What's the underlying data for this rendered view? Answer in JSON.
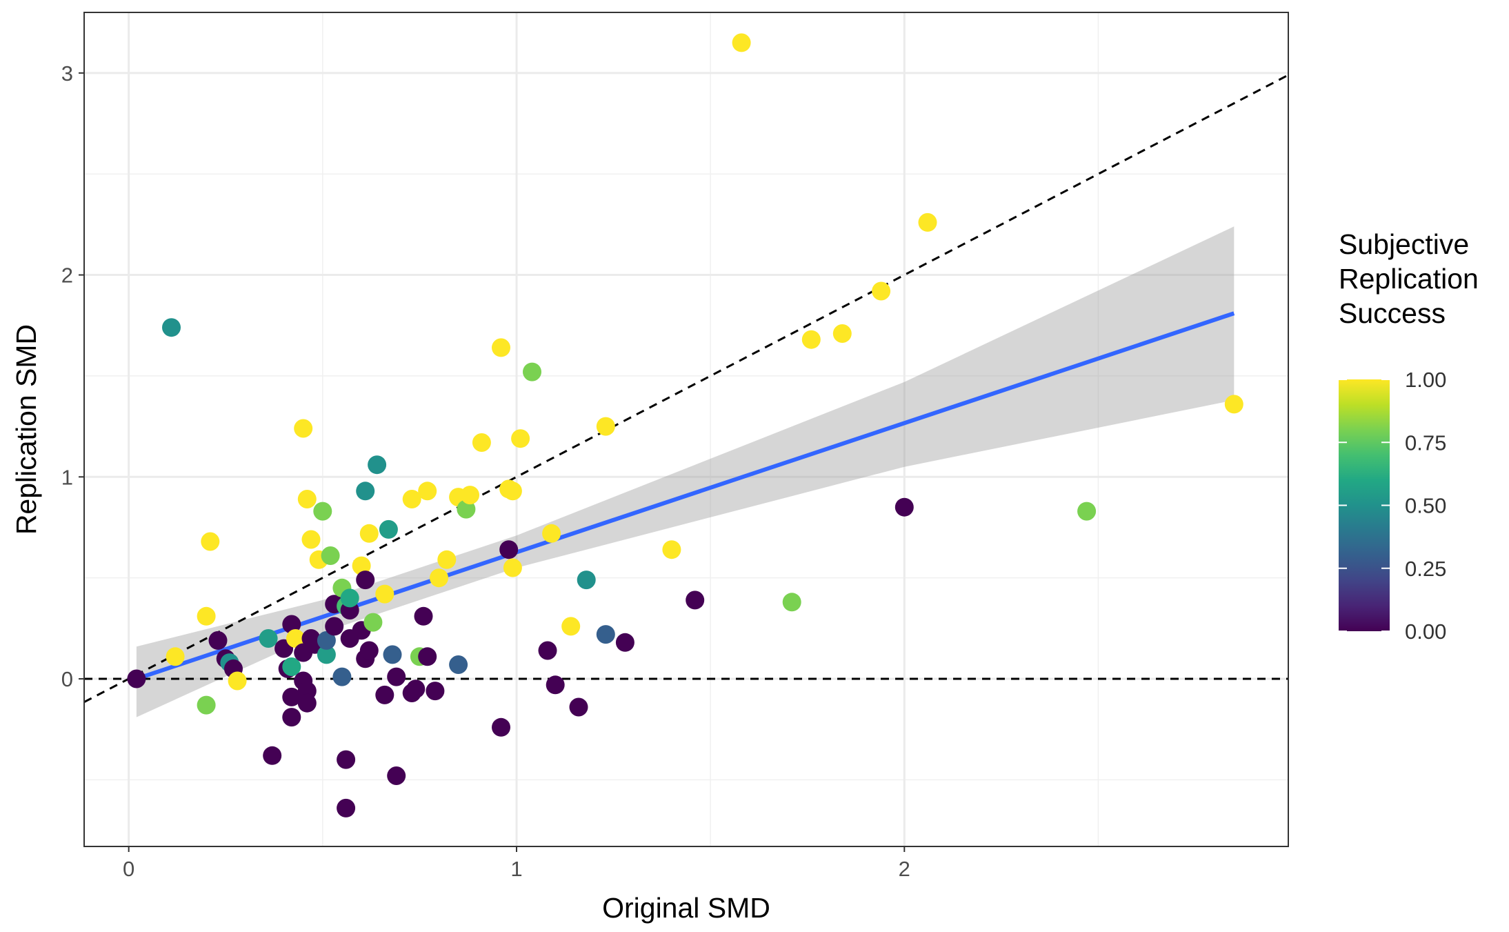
{
  "chart_data": {
    "type": "scatter",
    "xlabel": "Original SMD",
    "ylabel": "Replication SMD",
    "xlim": [
      -0.115,
      2.99
    ],
    "ylim": [
      -0.83,
      3.3
    ],
    "x_ticks": [
      0,
      1,
      2
    ],
    "y_ticks": [
      0,
      1,
      2,
      3
    ],
    "x_tick_labels": [
      "0",
      "1",
      "2"
    ],
    "y_tick_labels": [
      "0",
      "1",
      "2",
      "3"
    ],
    "grid": true,
    "legend": {
      "position": "right",
      "title_lines": [
        "Subjective",
        "Replication",
        "Success"
      ],
      "min": 0,
      "max": 1,
      "ticks": [
        0,
        0.25,
        0.5,
        0.75,
        1
      ],
      "tick_labels": [
        "0.00",
        "0.25",
        "0.50",
        "0.75",
        "1.00"
      ],
      "palette": "viridis",
      "colors": [
        "#440154",
        "#3b528b",
        "#21908c",
        "#5dc863",
        "#fde725"
      ]
    },
    "reference_lines": [
      {
        "name": "identity",
        "slope": 1,
        "intercept": 0,
        "style": "dashed",
        "color": "#000000"
      },
      {
        "name": "zero",
        "slope": 0,
        "intercept": 0,
        "style": "dashed",
        "color": "#000000"
      }
    ],
    "fit": {
      "method": "linear regression",
      "color": "#3366ff",
      "band_color": "#999999",
      "x": [
        0.02,
        2.85
      ],
      "y": [
        0.0,
        1.81
      ],
      "band": [
        {
          "x": 0.02,
          "lo": -0.19,
          "hi": 0.16
        },
        {
          "x": 0.5,
          "lo": 0.23,
          "hi": 0.39
        },
        {
          "x": 1.0,
          "lo": 0.55,
          "hi": 0.71
        },
        {
          "x": 2.0,
          "lo": 1.05,
          "hi": 1.47
        },
        {
          "x": 2.85,
          "lo": 1.38,
          "hi": 2.24
        }
      ]
    },
    "points": [
      {
        "x": 0.02,
        "y": 0.0,
        "success": 0.0
      },
      {
        "x": 0.11,
        "y": 1.74,
        "success": 0.5
      },
      {
        "x": 0.12,
        "y": 0.11,
        "success": 1.0
      },
      {
        "x": 0.2,
        "y": 0.31,
        "success": 1.0
      },
      {
        "x": 0.2,
        "y": -0.13,
        "success": 0.8
      },
      {
        "x": 0.21,
        "y": 0.68,
        "success": 1.0
      },
      {
        "x": 0.23,
        "y": 0.19,
        "success": 0.0
      },
      {
        "x": 0.25,
        "y": 0.1,
        "success": 0.0
      },
      {
        "x": 0.26,
        "y": 0.08,
        "success": 0.5
      },
      {
        "x": 0.27,
        "y": 0.05,
        "success": 0.0
      },
      {
        "x": 0.28,
        "y": -0.01,
        "success": 1.0
      },
      {
        "x": 0.36,
        "y": 0.2,
        "success": 0.55
      },
      {
        "x": 0.37,
        "y": -0.38,
        "success": 0.0
      },
      {
        "x": 0.4,
        "y": 0.15,
        "success": 0.0
      },
      {
        "x": 0.41,
        "y": 0.05,
        "success": 0.0
      },
      {
        "x": 0.42,
        "y": -0.09,
        "success": 0.0
      },
      {
        "x": 0.42,
        "y": -0.19,
        "success": 0.0
      },
      {
        "x": 0.42,
        "y": 0.27,
        "success": 0.0
      },
      {
        "x": 0.42,
        "y": 0.06,
        "success": 0.6
      },
      {
        "x": 0.43,
        "y": 0.2,
        "success": 1.0
      },
      {
        "x": 0.45,
        "y": 1.24,
        "success": 1.0
      },
      {
        "x": 0.45,
        "y": 0.13,
        "success": 0.0
      },
      {
        "x": 0.45,
        "y": -0.01,
        "success": 0.0
      },
      {
        "x": 0.46,
        "y": -0.06,
        "success": 0.0
      },
      {
        "x": 0.46,
        "y": -0.12,
        "success": 0.0
      },
      {
        "x": 0.46,
        "y": 0.89,
        "success": 1.0
      },
      {
        "x": 0.47,
        "y": 0.69,
        "success": 1.0
      },
      {
        "x": 0.47,
        "y": 0.2,
        "success": 0.0
      },
      {
        "x": 0.48,
        "y": 0.17,
        "success": 0.0
      },
      {
        "x": 0.49,
        "y": 0.59,
        "success": 1.0
      },
      {
        "x": 0.5,
        "y": 0.83,
        "success": 0.8
      },
      {
        "x": 0.51,
        "y": 0.12,
        "success": 0.55
      },
      {
        "x": 0.51,
        "y": 0.19,
        "success": 0.3
      },
      {
        "x": 0.52,
        "y": 0.61,
        "success": 0.8
      },
      {
        "x": 0.53,
        "y": 0.26,
        "success": 0.0
      },
      {
        "x": 0.53,
        "y": 0.37,
        "success": 0.0
      },
      {
        "x": 0.55,
        "y": 0.45,
        "success": 0.8
      },
      {
        "x": 0.55,
        "y": 0.01,
        "success": 0.3
      },
      {
        "x": 0.56,
        "y": 0.36,
        "success": 0.7
      },
      {
        "x": 0.56,
        "y": -0.64,
        "success": 0.0
      },
      {
        "x": 0.56,
        "y": -0.4,
        "success": 0.0
      },
      {
        "x": 0.57,
        "y": 0.2,
        "success": 0.0
      },
      {
        "x": 0.57,
        "y": 0.34,
        "success": 0.0
      },
      {
        "x": 0.57,
        "y": 0.4,
        "success": 0.6
      },
      {
        "x": 0.6,
        "y": 0.56,
        "success": 1.0
      },
      {
        "x": 0.6,
        "y": 0.24,
        "success": 0.0
      },
      {
        "x": 0.61,
        "y": 0.1,
        "success": 0.0
      },
      {
        "x": 0.61,
        "y": 0.49,
        "success": 0.0
      },
      {
        "x": 0.61,
        "y": 0.93,
        "success": 0.5
      },
      {
        "x": 0.62,
        "y": 0.14,
        "success": 0.0
      },
      {
        "x": 0.62,
        "y": 0.72,
        "success": 1.0
      },
      {
        "x": 0.63,
        "y": 0.28,
        "success": 0.8
      },
      {
        "x": 0.64,
        "y": 1.06,
        "success": 0.5
      },
      {
        "x": 0.66,
        "y": -0.08,
        "success": 0.0
      },
      {
        "x": 0.66,
        "y": 0.42,
        "success": 1.0
      },
      {
        "x": 0.67,
        "y": 0.74,
        "success": 0.55
      },
      {
        "x": 0.68,
        "y": 0.12,
        "success": 0.3
      },
      {
        "x": 0.69,
        "y": -0.48,
        "success": 0.0
      },
      {
        "x": 0.69,
        "y": 0.01,
        "success": 0.0
      },
      {
        "x": 0.73,
        "y": 0.89,
        "success": 1.0
      },
      {
        "x": 0.73,
        "y": -0.07,
        "success": 0.0
      },
      {
        "x": 0.74,
        "y": -0.05,
        "success": 0.0
      },
      {
        "x": 0.75,
        "y": 0.11,
        "success": 0.8
      },
      {
        "x": 0.76,
        "y": 0.31,
        "success": 0.0
      },
      {
        "x": 0.77,
        "y": 0.93,
        "success": 1.0
      },
      {
        "x": 0.77,
        "y": 0.11,
        "success": 0.0
      },
      {
        "x": 0.79,
        "y": -0.06,
        "success": 0.0
      },
      {
        "x": 0.8,
        "y": 0.5,
        "success": 1.0
      },
      {
        "x": 0.82,
        "y": 0.59,
        "success": 1.0
      },
      {
        "x": 0.85,
        "y": 0.9,
        "success": 1.0
      },
      {
        "x": 0.85,
        "y": 0.07,
        "success": 0.3
      },
      {
        "x": 0.87,
        "y": 0.84,
        "success": 0.8
      },
      {
        "x": 0.88,
        "y": 0.91,
        "success": 1.0
      },
      {
        "x": 0.91,
        "y": 1.17,
        "success": 1.0
      },
      {
        "x": 0.96,
        "y": 1.64,
        "success": 1.0
      },
      {
        "x": 0.96,
        "y": -0.24,
        "success": 0.0
      },
      {
        "x": 0.98,
        "y": 0.64,
        "success": 0.0
      },
      {
        "x": 0.98,
        "y": 0.94,
        "success": 1.0
      },
      {
        "x": 0.99,
        "y": 0.93,
        "success": 1.0
      },
      {
        "x": 0.99,
        "y": 0.55,
        "success": 1.0
      },
      {
        "x": 1.01,
        "y": 1.19,
        "success": 1.0
      },
      {
        "x": 1.04,
        "y": 1.52,
        "success": 0.8
      },
      {
        "x": 1.08,
        "y": 0.14,
        "success": 0.0
      },
      {
        "x": 1.09,
        "y": 0.72,
        "success": 1.0
      },
      {
        "x": 1.1,
        "y": -0.03,
        "success": 0.0
      },
      {
        "x": 1.14,
        "y": 0.26,
        "success": 1.0
      },
      {
        "x": 1.16,
        "y": -0.14,
        "success": 0.0
      },
      {
        "x": 1.18,
        "y": 0.49,
        "success": 0.5
      },
      {
        "x": 1.23,
        "y": 1.25,
        "success": 1.0
      },
      {
        "x": 1.23,
        "y": 0.22,
        "success": 0.3
      },
      {
        "x": 1.28,
        "y": 0.18,
        "success": 0.0
      },
      {
        "x": 1.4,
        "y": 0.64,
        "success": 1.0
      },
      {
        "x": 1.46,
        "y": 0.39,
        "success": 0.0
      },
      {
        "x": 1.58,
        "y": 3.15,
        "success": 1.0
      },
      {
        "x": 1.71,
        "y": 0.38,
        "success": 0.8
      },
      {
        "x": 1.76,
        "y": 1.68,
        "success": 1.0
      },
      {
        "x": 1.84,
        "y": 1.71,
        "success": 1.0
      },
      {
        "x": 1.94,
        "y": 1.92,
        "success": 1.0
      },
      {
        "x": 2.0,
        "y": 0.85,
        "success": 0.0
      },
      {
        "x": 2.06,
        "y": 2.26,
        "success": 1.0
      },
      {
        "x": 2.47,
        "y": 0.83,
        "success": 0.8
      },
      {
        "x": 2.85,
        "y": 1.36,
        "success": 1.0
      }
    ]
  }
}
